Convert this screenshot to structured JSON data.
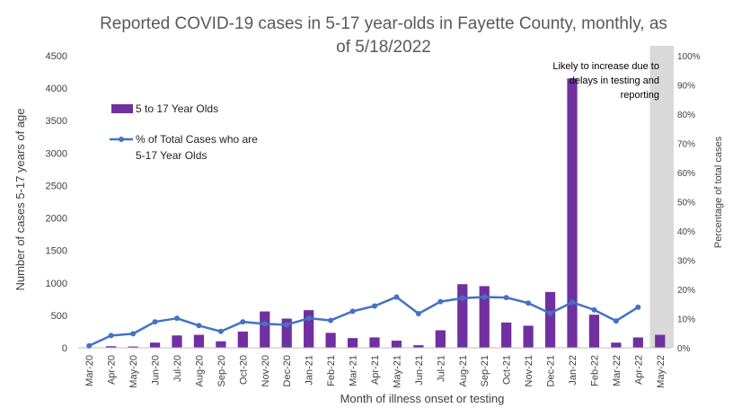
{
  "chart_data": {
    "type": "bar",
    "title_lines": [
      "Reported COVID-19 cases in 5-17 year-olds in Fayette County, monthly, as",
      "of 5/18/2022"
    ],
    "xlabel": "Month of illness onset or testing",
    "ylabel": "Number of cases 5-17 years of age",
    "y2label": "Percentage of total cases",
    "ylim": [
      0,
      4500
    ],
    "y_ticks": [
      0,
      500,
      1000,
      1500,
      2000,
      2500,
      3000,
      3500,
      4000,
      4500
    ],
    "y_tick_labels": [
      "0",
      "500",
      "1000",
      "1500",
      "2000",
      "2500",
      "3000",
      "3500",
      "4000",
      "4500"
    ],
    "y2lim": [
      0,
      100
    ],
    "y2_ticks": [
      0,
      10,
      20,
      30,
      40,
      50,
      60,
      70,
      80,
      90,
      100
    ],
    "y2_tick_labels": [
      "0%",
      "10%",
      "20%",
      "30%",
      "40%",
      "50%",
      "60%",
      "70%",
      "80%",
      "90%",
      "100%"
    ],
    "categories": [
      "Mar-20",
      "Apr-20",
      "May-20",
      "Jun-20",
      "Jul-20",
      "Aug-20",
      "Sep-20",
      "Oct-20",
      "Nov-20",
      "Dec-20",
      "Jan-21",
      "Feb-21",
      "Mar-21",
      "Apr-21",
      "May-21",
      "Jun-21",
      "Jul-21",
      "Aug-21",
      "Sep-21",
      "Oct-21",
      "Nov-21",
      "Dec-21",
      "Jan-22",
      "Feb-22",
      "Mar-22",
      "Apr-22",
      "May-22"
    ],
    "series": [
      {
        "name": "5 to 17 Year Olds",
        "type": "bar",
        "axis": "left",
        "color": "#7030A0",
        "values": [
          5,
          25,
          20,
          80,
          190,
          200,
          100,
          250,
          560,
          450,
          580,
          230,
          150,
          160,
          110,
          40,
          270,
          980,
          950,
          390,
          340,
          860,
          4150,
          510,
          80,
          160,
          200
        ]
      },
      {
        "name": "% of Total Cases who are 5-17 Year Olds",
        "legend_lines": [
          "% of Total Cases who are",
          "5-17 Year Olds"
        ],
        "type": "line",
        "axis": "right",
        "color": "#4472C4",
        "values": [
          0.7,
          4.2,
          4.8,
          8.9,
          10.1,
          7.6,
          5.6,
          8.9,
          8.2,
          7.9,
          10.1,
          9.4,
          12.5,
          14.3,
          17.4,
          11.7,
          15.8,
          17.0,
          17.4,
          17.2,
          15.3,
          11.8,
          15.6,
          13.0,
          9.2,
          13.9,
          null
        ]
      }
    ],
    "shaded_category": "May-22",
    "annotation_lines": [
      "Likely to increase due to",
      "delays in testing and",
      "reporting"
    ],
    "grid": false,
    "legend_position": "upper-left"
  }
}
